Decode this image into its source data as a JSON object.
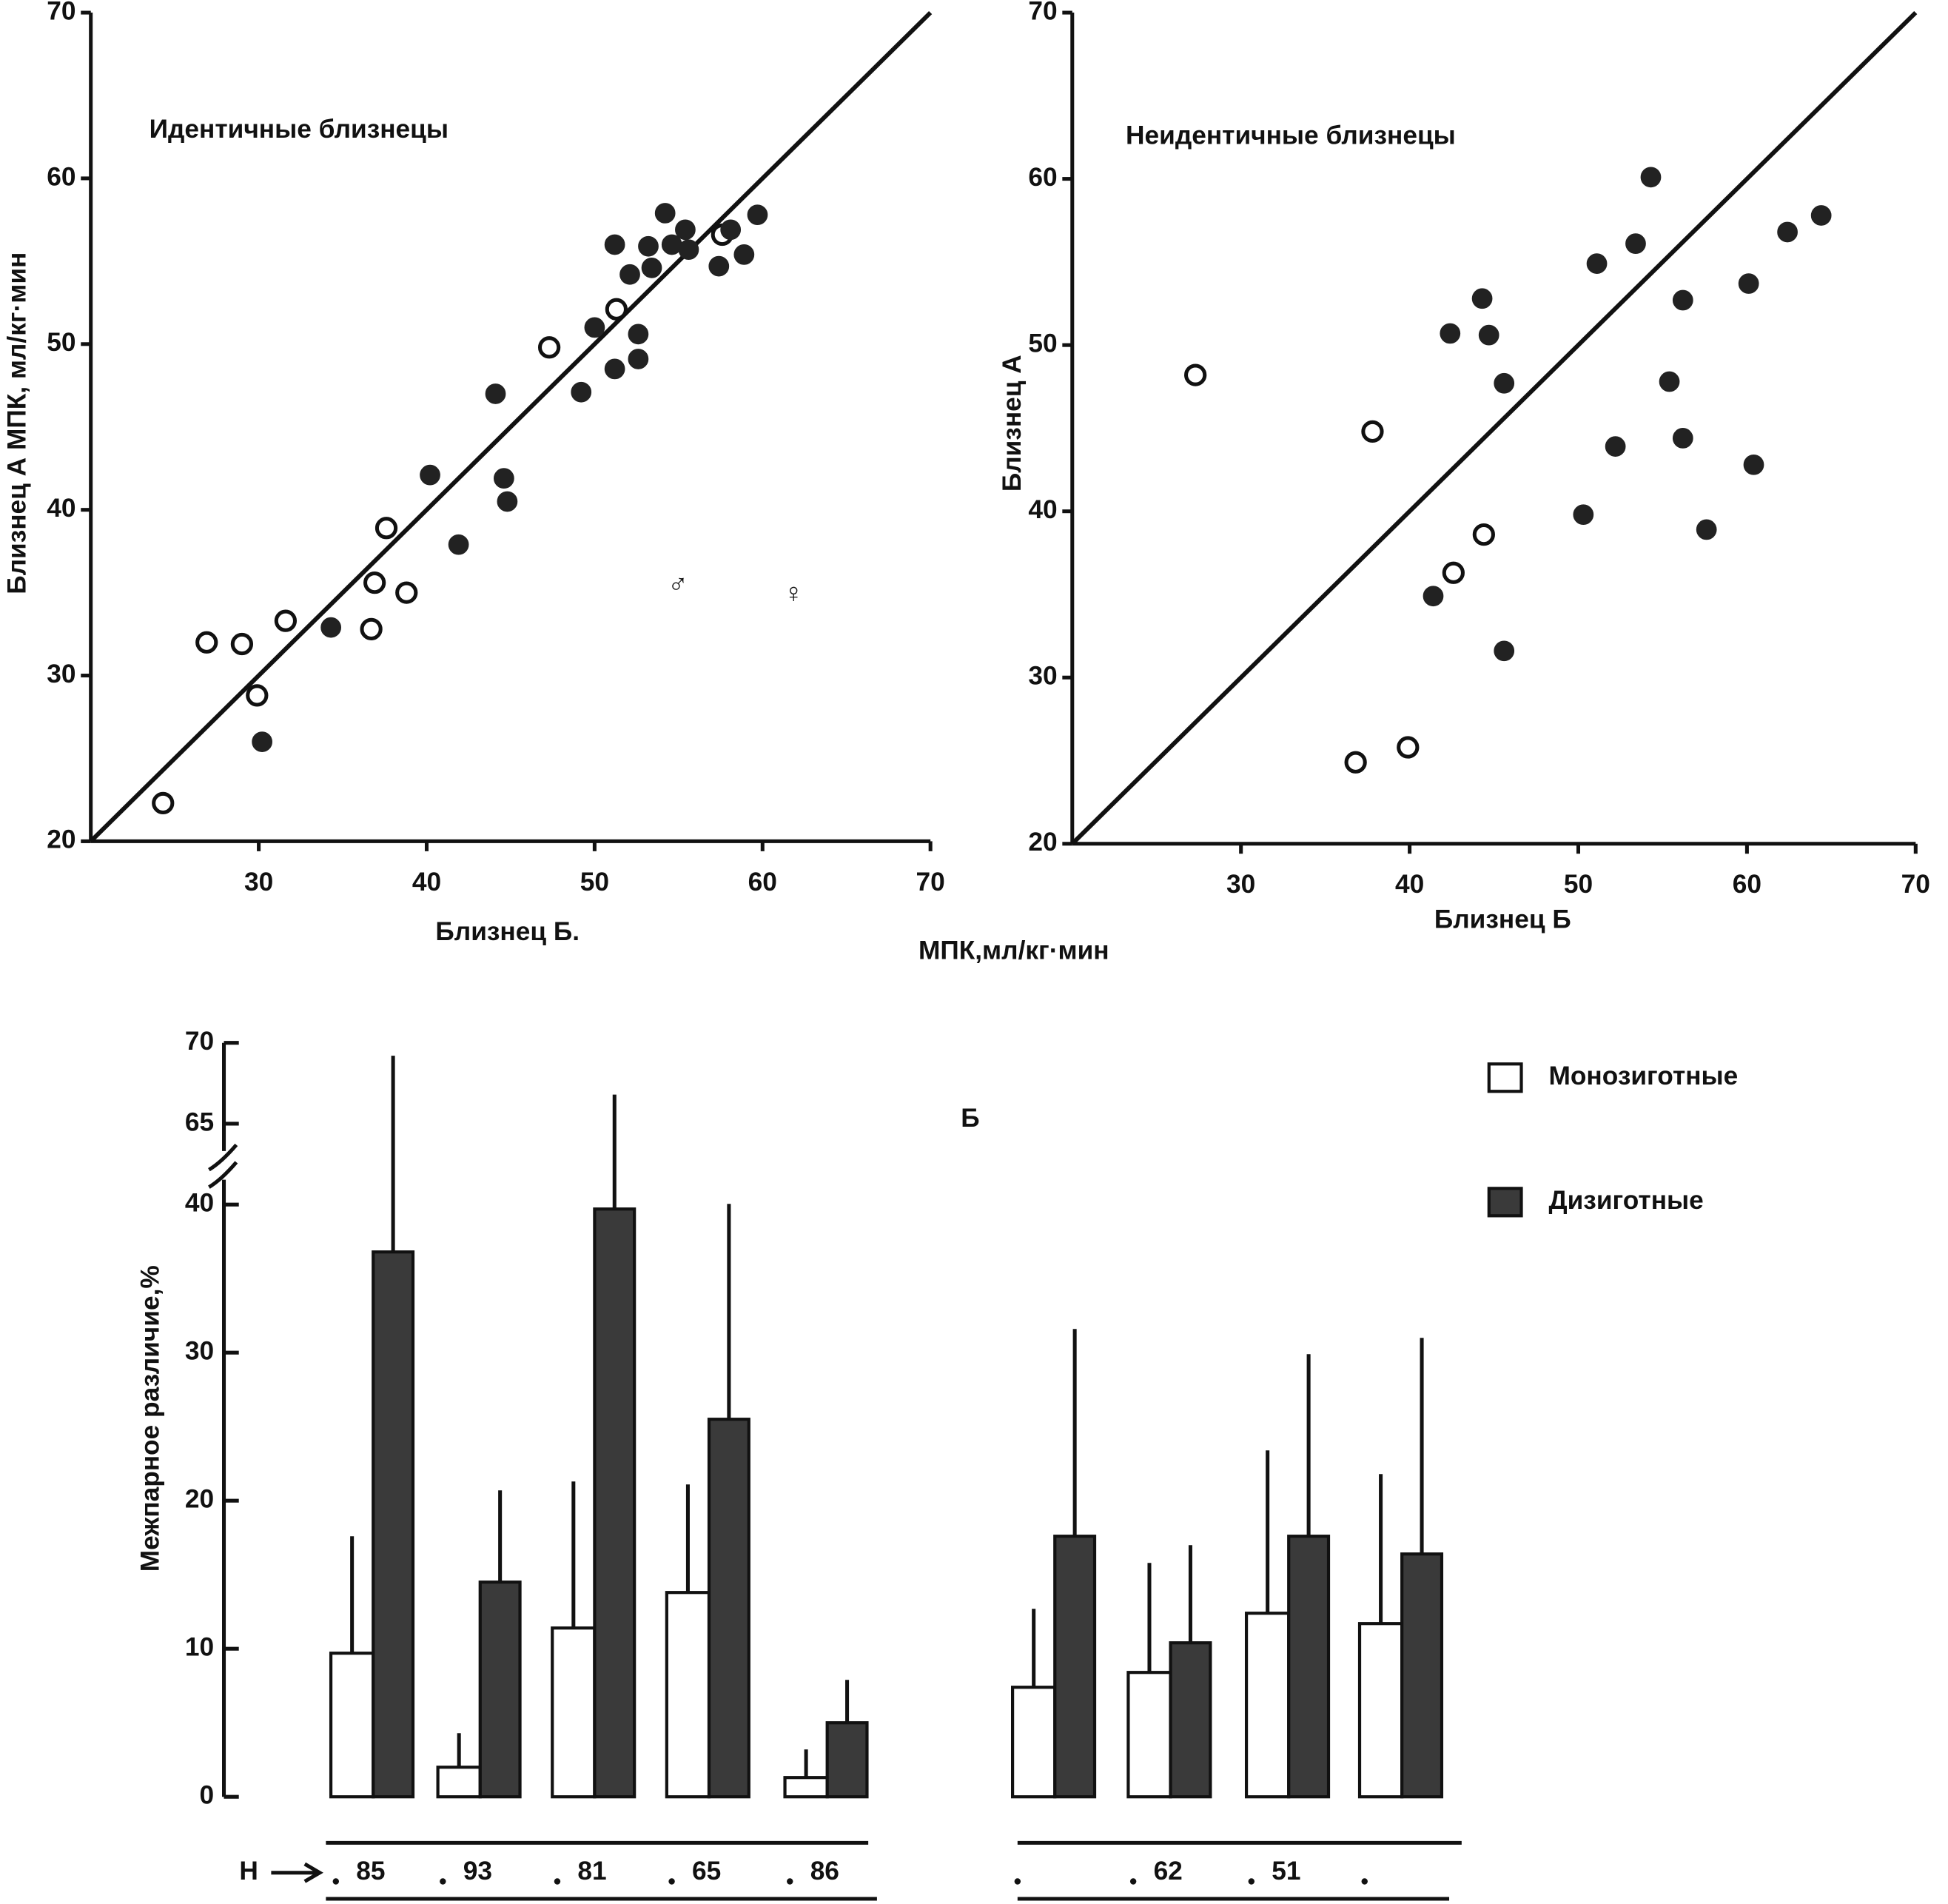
{
  "shared_xlabel": "МПК,мл/кг·мин",
  "chart_data": [
    {
      "type": "scatter",
      "title": "Идентичные близнецы",
      "xlabel": "Близнец Б.",
      "ylabel": "Близнец А  МПК, мл/кг·мин",
      "xlim": [
        20,
        70
      ],
      "ylim": [
        20,
        70
      ],
      "xticks": [
        30,
        40,
        50,
        60,
        70
      ],
      "yticks": [
        20,
        30,
        40,
        50,
        60,
        70
      ],
      "diagonal": true,
      "annotations": [
        "♂",
        "♀"
      ],
      "series": [
        {
          "marker": "open",
          "color": "#111111",
          "x": [
            26.9,
            29.0,
            31.6,
            29.9,
            24.3,
            37.6,
            36.9,
            38.8,
            36.7,
            47.3,
            51.3,
            57.6
          ],
          "values": [
            32.0,
            31.9,
            33.3,
            28.8,
            22.3,
            38.9,
            35.6,
            35.0,
            32.8,
            49.8,
            52.1,
            56.6
          ]
        },
        {
          "marker": "filled",
          "color": "#222222",
          "x": [
            30.2,
            34.3,
            41.9,
            40.2,
            44.6,
            44.8,
            44.1,
            49.2,
            50.0,
            51.2,
            52.6,
            52.6,
            51.2,
            52.1,
            53.4,
            53.2,
            54.2,
            54.6,
            55.4,
            55.6,
            57.4,
            58.9,
            59.7,
            58.1
          ],
          "values": [
            26.0,
            32.9,
            37.9,
            42.1,
            41.9,
            40.5,
            47.0,
            47.1,
            51.0,
            48.5,
            50.6,
            49.1,
            56.0,
            54.2,
            54.6,
            55.9,
            57.9,
            56.0,
            56.9,
            55.7,
            54.7,
            55.4,
            57.8,
            56.9
          ]
        }
      ]
    },
    {
      "type": "scatter",
      "title": "Неидентичные близнецы",
      "xlabel": "Близнец Б",
      "ylabel": "Близнец А",
      "xlim": [
        20,
        70
      ],
      "ylim": [
        20,
        70
      ],
      "xticks": [
        30,
        40,
        50,
        60,
        70
      ],
      "yticks": [
        20,
        30,
        40,
        50,
        60,
        70
      ],
      "diagonal": true,
      "series": [
        {
          "marker": "open",
          "color": "#111111",
          "x": [
            27.3,
            37.8,
            44.4,
            42.6,
            36.8,
            39.9
          ],
          "values": [
            48.2,
            44.8,
            38.6,
            36.3,
            24.9,
            25.8
          ]
        },
        {
          "marker": "filled",
          "color": "#222222",
          "x": [
            41.4,
            45.6,
            42.4,
            44.3,
            44.7,
            45.6,
            51.1,
            50.3,
            52.2,
            53.4,
            54.3,
            55.4,
            56.2,
            56.2,
            57.6,
            60.1,
            60.4,
            62.4,
            64.4
          ],
          "values": [
            34.9,
            31.6,
            50.7,
            52.8,
            50.6,
            47.7,
            54.9,
            39.8,
            43.9,
            56.1,
            60.1,
            47.8,
            52.7,
            44.4,
            38.9,
            53.7,
            42.8,
            56.8,
            57.8
          ]
        }
      ]
    },
    {
      "type": "bar",
      "label": "Б",
      "ylabel": "Межпарное различие,%",
      "n_label": "Н",
      "categories": [
        "85",
        "93",
        "81",
        "65",
        "86",
        null,
        "62",
        "51",
        null
      ],
      "ylim": [
        0,
        70
      ],
      "ybreak": [
        40,
        65
      ],
      "yticks": [
        0,
        10,
        20,
        30,
        40,
        65,
        70
      ],
      "series": [
        {
          "name": "Монозиготные",
          "color": "#ffffff",
          "values": [
            9.7,
            2.0,
            11.4,
            13.8,
            1.3,
            7.4,
            8.4,
            12.4,
            11.7
          ],
          "errors": [
            7.9,
            2.3,
            9.9,
            7.3,
            1.9,
            5.3,
            7.4,
            11.0,
            10.1
          ]
        },
        {
          "name": "Дизиготные",
          "color": "#3a3a3a",
          "values": [
            36.8,
            14.5,
            39.7,
            25.5,
            5.0,
            17.6,
            10.4,
            17.6,
            16.4
          ],
          "errors": [
            32.4,
            6.2,
            27.1,
            14.7,
            2.9,
            14.0,
            6.6,
            12.3,
            14.6
          ]
        }
      ]
    }
  ]
}
